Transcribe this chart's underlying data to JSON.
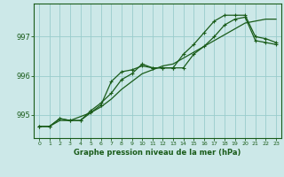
{
  "x": [
    0,
    1,
    2,
    3,
    4,
    5,
    6,
    7,
    8,
    9,
    10,
    11,
    12,
    13,
    14,
    15,
    16,
    17,
    18,
    19,
    20,
    21,
    22,
    23
  ],
  "line1": [
    994.7,
    994.7,
    994.9,
    994.85,
    994.85,
    995.1,
    995.3,
    995.55,
    995.9,
    996.05,
    996.3,
    996.2,
    996.2,
    996.2,
    996.55,
    996.8,
    997.1,
    997.4,
    997.55,
    997.55,
    997.55,
    997.0,
    996.95,
    996.85
  ],
  "line2": [
    994.7,
    994.7,
    994.9,
    994.85,
    994.85,
    995.05,
    995.25,
    995.85,
    996.1,
    996.15,
    996.25,
    996.2,
    996.2,
    996.2,
    996.2,
    996.55,
    996.75,
    997.0,
    997.3,
    997.45,
    997.5,
    996.9,
    996.85,
    996.8
  ],
  "line3": [
    994.7,
    994.7,
    994.85,
    994.85,
    994.95,
    995.05,
    995.2,
    995.4,
    995.65,
    995.85,
    996.05,
    996.15,
    996.25,
    996.3,
    996.45,
    996.6,
    996.75,
    996.9,
    997.05,
    997.2,
    997.35,
    997.4,
    997.45,
    997.45
  ],
  "bg_color": "#cce8e8",
  "grid_color": "#99cccc",
  "line_color": "#1a5c1a",
  "xlabel": "Graphe pression niveau de la mer (hPa)",
  "ylim": [
    994.4,
    997.85
  ],
  "yticks": [
    995,
    996,
    997
  ],
  "xticks": [
    0,
    1,
    2,
    3,
    4,
    5,
    6,
    7,
    8,
    9,
    10,
    11,
    12,
    13,
    14,
    15,
    16,
    17,
    18,
    19,
    20,
    21,
    22,
    23
  ],
  "marker": "+",
  "markersize": 3,
  "linewidth": 0.9
}
